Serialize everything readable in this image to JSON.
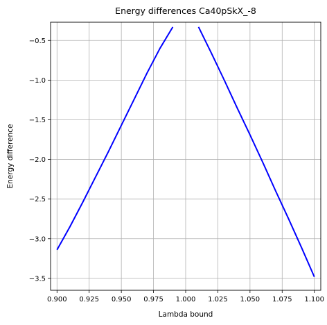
{
  "chart_data": {
    "type": "line",
    "title": "Energy differences Ca40pSkX_-8",
    "xlabel": "Lambda bound",
    "ylabel": "Energy difference",
    "xlim": [
      0.895,
      1.105
    ],
    "ylim": [
      -3.65,
      -0.27
    ],
    "xticks": [
      0.9,
      0.925,
      0.95,
      0.975,
      1.0,
      1.025,
      1.05,
      1.075,
      1.1
    ],
    "xtick_labels": [
      "0.900",
      "0.925",
      "0.950",
      "0.975",
      "1.000",
      "1.025",
      "1.050",
      "1.075",
      "1.100"
    ],
    "yticks": [
      -0.5,
      -1.0,
      -1.5,
      -2.0,
      -2.5,
      -3.0,
      -3.5
    ],
    "ytick_labels": [
      "−0.5",
      "−1.0",
      "−1.5",
      "−2.0",
      "−2.5",
      "−3.0",
      "−3.5"
    ],
    "grid": true,
    "series": [
      {
        "color": "#0000ff",
        "x": [
          0.9,
          0.91,
          0.92,
          0.93,
          0.94,
          0.95,
          0.96,
          0.97,
          0.98,
          0.99
        ],
        "y": [
          -3.14,
          -2.85,
          -2.54,
          -2.22,
          -1.9,
          -1.57,
          -1.24,
          -0.91,
          -0.6,
          -0.33
        ]
      },
      {
        "color": "#0000ff",
        "x": [
          1.01,
          1.02,
          1.03,
          1.04,
          1.05,
          1.06,
          1.07,
          1.08,
          1.09,
          1.1
        ],
        "y": [
          -0.33,
          -0.66,
          -1.0,
          -1.35,
          -1.69,
          -2.04,
          -2.4,
          -2.75,
          -3.11,
          -3.48
        ]
      }
    ]
  }
}
